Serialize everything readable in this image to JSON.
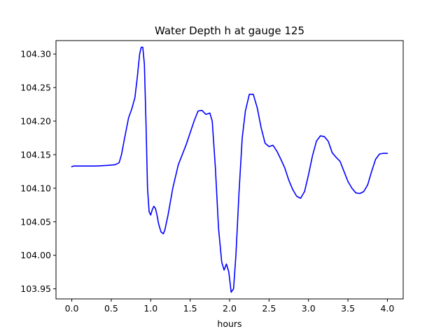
{
  "chart_data": {
    "type": "line",
    "title": "Water Depth h at gauge 125",
    "xlabel": "hours",
    "ylabel": "",
    "xlim": [
      -0.2,
      4.2
    ],
    "ylim": [
      103.935,
      104.32
    ],
    "xticks": [
      0.0,
      0.5,
      1.0,
      1.5,
      2.0,
      2.5,
      3.0,
      3.5,
      4.0
    ],
    "xtick_labels": [
      "0.0",
      "0.5",
      "1.0",
      "1.5",
      "2.0",
      "2.5",
      "3.0",
      "3.5",
      "4.0"
    ],
    "yticks": [
      103.95,
      104.0,
      104.05,
      104.1,
      104.15,
      104.2,
      104.25,
      104.3
    ],
    "ytick_labels": [
      "103.95",
      "104.00",
      "104.05",
      "104.10",
      "104.15",
      "104.20",
      "104.25",
      "104.30"
    ],
    "grid": false,
    "series": [
      {
        "color": "#0000ff",
        "x": [
          0.0,
          0.02,
          0.1,
          0.3,
          0.45,
          0.55,
          0.6,
          0.63,
          0.67,
          0.72,
          0.76,
          0.8,
          0.83,
          0.86,
          0.88,
          0.9,
          0.92,
          0.94,
          0.96,
          0.98,
          1.0,
          1.02,
          1.04,
          1.06,
          1.08,
          1.1,
          1.13,
          1.16,
          1.18,
          1.22,
          1.28,
          1.35,
          1.45,
          1.55,
          1.6,
          1.65,
          1.7,
          1.75,
          1.78,
          1.82,
          1.86,
          1.9,
          1.93,
          1.96,
          1.99,
          2.02,
          2.05,
          2.08,
          2.12,
          2.16,
          2.2,
          2.25,
          2.3,
          2.35,
          2.4,
          2.45,
          2.5,
          2.55,
          2.6,
          2.65,
          2.7,
          2.75,
          2.8,
          2.85,
          2.9,
          2.95,
          3.0,
          3.05,
          3.1,
          3.15,
          3.2,
          3.25,
          3.3,
          3.35,
          3.4,
          3.45,
          3.5,
          3.55,
          3.6,
          3.65,
          3.7,
          3.75,
          3.8,
          3.85,
          3.9,
          3.95,
          4.0
        ],
        "y": [
          104.132,
          104.133,
          104.133,
          104.133,
          104.134,
          104.135,
          104.138,
          104.15,
          104.175,
          104.205,
          104.218,
          104.235,
          104.265,
          104.3,
          104.31,
          104.31,
          104.285,
          104.2,
          104.1,
          104.065,
          104.06,
          104.068,
          104.073,
          104.07,
          104.06,
          104.047,
          104.035,
          104.032,
          104.038,
          104.06,
          104.1,
          104.135,
          104.165,
          104.2,
          104.215,
          104.216,
          104.21,
          104.212,
          104.2,
          104.13,
          104.04,
          103.99,
          103.978,
          103.987,
          103.975,
          103.945,
          103.95,
          104.0,
          104.095,
          104.175,
          104.215,
          104.24,
          104.24,
          104.22,
          104.19,
          104.167,
          104.162,
          104.164,
          104.155,
          104.143,
          104.13,
          104.112,
          104.098,
          104.088,
          104.085,
          104.095,
          104.12,
          104.148,
          104.17,
          104.178,
          104.177,
          104.17,
          104.153,
          104.146,
          104.14,
          104.125,
          104.11,
          104.1,
          104.093,
          104.092,
          104.095,
          104.105,
          104.125,
          104.143,
          104.151,
          104.152,
          104.152
        ]
      }
    ]
  }
}
